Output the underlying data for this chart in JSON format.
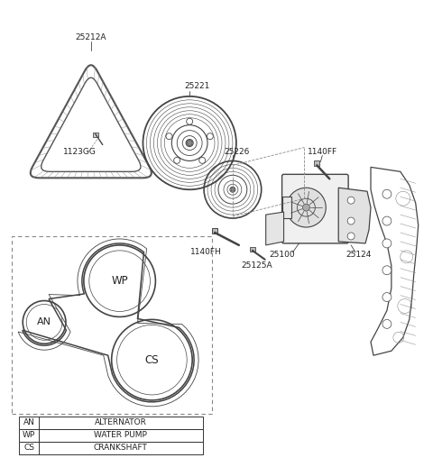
{
  "bg_color": "#ffffff",
  "line_color": "#444444",
  "label_color": "#222222",
  "parts": {
    "belt_triangle_label": "25212A",
    "bolt_small_label": "1123GG",
    "pulley_large_label": "25221",
    "pulley_small_label": "25226",
    "bolt_long_label": "1140FH",
    "bolt_short_label": "1140FF",
    "gasket_label": "25125A",
    "water_pump_label": "25100",
    "cover_label": "25124"
  },
  "legend_items": [
    [
      "AN",
      "ALTERNATOR"
    ],
    [
      "WP",
      "WATER PUMP"
    ],
    [
      "CS",
      "CRANKSHAFT"
    ]
  ],
  "font_size_label": 6.5,
  "font_size_legend": 6.5,
  "font_size_pulleys": 8.5
}
